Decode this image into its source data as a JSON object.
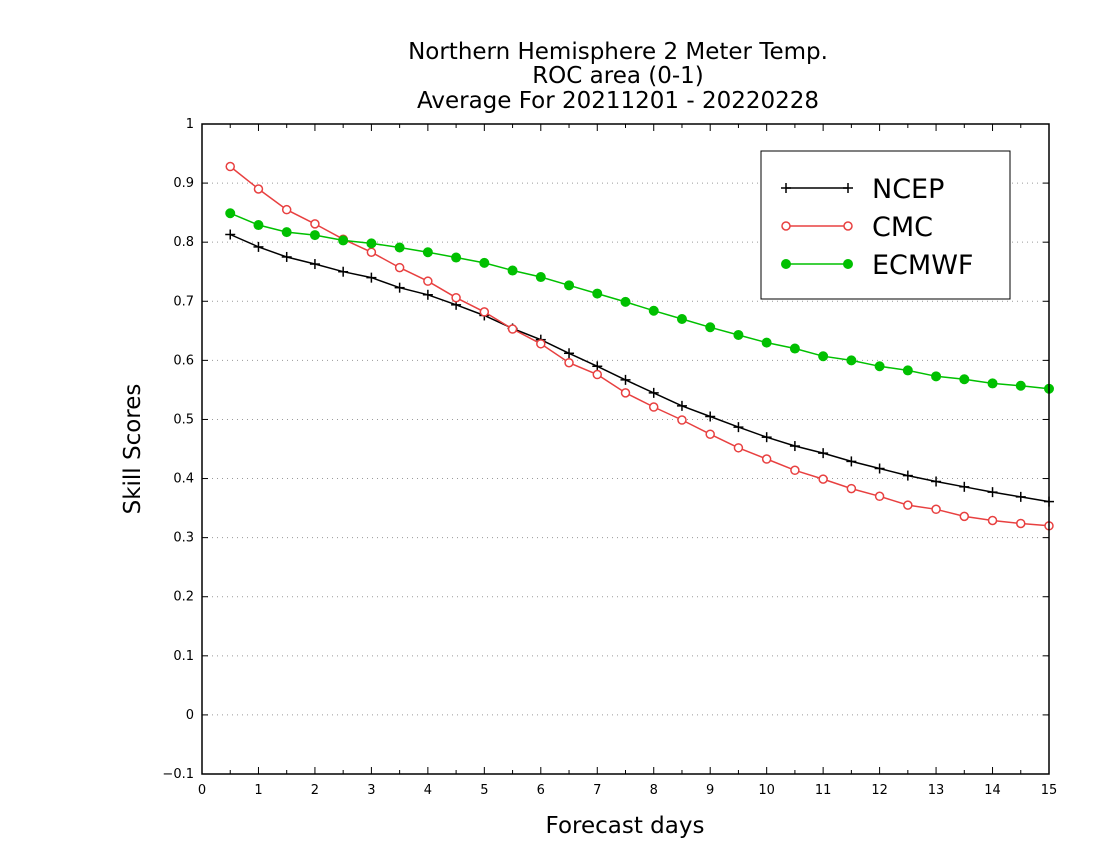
{
  "chart_data": {
    "type": "line",
    "title_lines": [
      "Northern Hemisphere 2 Meter Temp.",
      "ROC area (0-1)",
      "Average For 20211201 - 20220228"
    ],
    "xlabel": "Forecast days",
    "ylabel": "Skill Scores",
    "xlim": [
      0,
      15
    ],
    "ylim": [
      -0.1,
      1
    ],
    "x_ticks": [
      "0",
      "1",
      "2",
      "3",
      "4",
      "5",
      "6",
      "7",
      "8",
      "9",
      "10",
      "11",
      "12",
      "13",
      "14",
      "15"
    ],
    "y_ticks": [
      "−0.1",
      "0",
      "0.1",
      "0.2",
      "0.3",
      "0.4",
      "0.5",
      "0.6",
      "0.7",
      "0.8",
      "0.9",
      "1"
    ],
    "y_tick_values": [
      -0.1,
      0,
      0.1,
      0.2,
      0.3,
      0.4,
      0.5,
      0.6,
      0.7,
      0.8,
      0.9,
      1
    ],
    "grid": true,
    "legend_position": "top-right",
    "x": [
      0.5,
      1,
      1.5,
      2,
      2.5,
      3,
      3.5,
      4,
      4.5,
      5,
      5.5,
      6,
      6.5,
      7,
      7.5,
      8,
      8.5,
      9,
      9.5,
      10,
      10.5,
      11,
      11.5,
      12,
      12.5,
      13,
      13.5,
      14,
      14.5,
      15
    ],
    "series": [
      {
        "name": "NCEP",
        "color": "#000000",
        "marker": "plus",
        "values": [
          0.813,
          0.792,
          0.775,
          0.763,
          0.75,
          0.74,
          0.723,
          0.711,
          0.694,
          0.676,
          0.654,
          0.635,
          0.612,
          0.59,
          0.567,
          0.545,
          0.523,
          0.505,
          0.487,
          0.47,
          0.455,
          0.443,
          0.429,
          0.417,
          0.405,
          0.395,
          0.386,
          0.377,
          0.369,
          0.361
        ]
      },
      {
        "name": "CMC",
        "color": "#e84040",
        "marker": "open-circle",
        "values": [
          0.928,
          0.89,
          0.855,
          0.831,
          0.805,
          0.783,
          0.757,
          0.734,
          0.706,
          0.682,
          0.653,
          0.628,
          0.596,
          0.576,
          0.545,
          0.521,
          0.499,
          0.475,
          0.452,
          0.433,
          0.414,
          0.399,
          0.383,
          0.37,
          0.355,
          0.348,
          0.336,
          0.329,
          0.324,
          0.32
        ]
      },
      {
        "name": "ECMWF",
        "color": "#00c000",
        "marker": "filled-circle",
        "values": [
          0.849,
          0.829,
          0.817,
          0.812,
          0.803,
          0.798,
          0.791,
          0.783,
          0.774,
          0.765,
          0.752,
          0.741,
          0.727,
          0.713,
          0.699,
          0.684,
          0.67,
          0.656,
          0.643,
          0.63,
          0.62,
          0.607,
          0.6,
          0.59,
          0.583,
          0.573,
          0.568,
          0.561,
          0.557,
          0.552
        ]
      }
    ]
  }
}
